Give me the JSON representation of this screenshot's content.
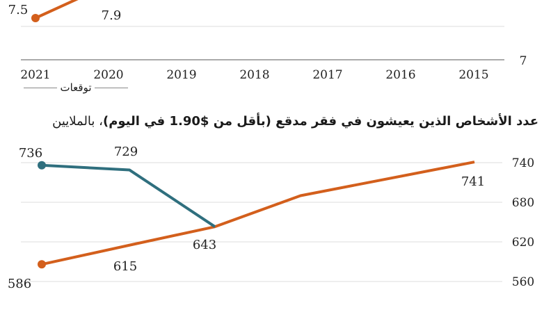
{
  "chart_data": [
    {
      "type": "line",
      "x_categories": [
        "2021",
        "2020",
        "2019",
        "2018",
        "2017",
        "2016",
        "2015"
      ],
      "y_ticks_visible": [
        "7"
      ],
      "series": [
        {
          "color": "#d35f1c",
          "points": [
            {
              "x": "2021",
              "y": 7.5
            },
            {
              "x": "2020",
              "y": 7.9
            }
          ]
        }
      ],
      "data_labels": [
        "7.5",
        "7.9"
      ],
      "annotation": "توقعات",
      "grid": true
    },
    {
      "type": "line",
      "title_main": "عدد الأشخاص الذين يعيشون في فقر مدقع (بأقل من $1.90 في اليوم)",
      "title_sub": "، بالملايين",
      "y_ticks": [
        "740",
        "680",
        "620",
        "560"
      ],
      "ylim": [
        560,
        740
      ],
      "series": [
        {
          "color": "#d35f1c",
          "points": [
            {
              "x": "2021",
              "y": 586
            },
            {
              "x": "2020",
              "y": 615
            },
            {
              "x": "2019",
              "y": 643
            },
            {
              "x": "2018",
              "y": 690
            },
            {
              "x": "2015",
              "y": 741
            }
          ]
        },
        {
          "color": "#2f6f7e",
          "points": [
            {
              "x": "2021",
              "y": 736
            },
            {
              "x": "2020",
              "y": 729
            },
            {
              "x": "2019",
              "y": 643
            }
          ]
        }
      ],
      "data_labels": [
        "736",
        "729",
        "643",
        "586",
        "615",
        "741"
      ],
      "grid": true
    }
  ]
}
